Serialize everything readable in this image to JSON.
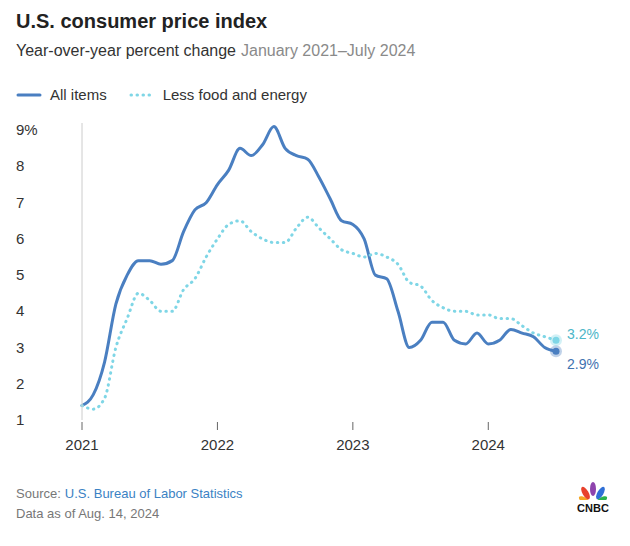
{
  "chart_data": {
    "type": "line",
    "title": "U.S. consumer price index",
    "subtitle": "Year-over-year percent change",
    "subtitle_note": "January 2021–July 2024",
    "source_label": "Source:",
    "source": "U.S. Bureau of Labor Statistics",
    "note": "Data as of Aug. 14, 2024",
    "logo": "CNBC",
    "categories": [
      "2021",
      null,
      null,
      null,
      null,
      null,
      null,
      null,
      null,
      null,
      null,
      null,
      "2022",
      null,
      null,
      null,
      null,
      null,
      null,
      null,
      null,
      null,
      null,
      null,
      "2023",
      null,
      null,
      null,
      null,
      null,
      null,
      null,
      null,
      null,
      null,
      null,
      "2024",
      null,
      null,
      null,
      null,
      null,
      null
    ],
    "series": [
      {
        "name": "All items",
        "color": "#4a7fc1",
        "line_style": "solid",
        "values": [
          1.4,
          1.7,
          2.6,
          4.2,
          5.0,
          5.4,
          5.4,
          5.3,
          5.4,
          6.2,
          6.8,
          7.0,
          7.5,
          7.9,
          8.5,
          8.3,
          8.6,
          9.1,
          8.5,
          8.3,
          8.2,
          7.7,
          7.1,
          6.5,
          6.4,
          6.0,
          5.0,
          4.9,
          4.0,
          3.0,
          3.2,
          3.7,
          3.7,
          3.2,
          3.1,
          3.4,
          3.1,
          3.2,
          3.5,
          3.4,
          3.3,
          3.0,
          2.9
        ],
        "value_labels": [
          null,
          null,
          null,
          null,
          null,
          null,
          null,
          null,
          null,
          null,
          null,
          null,
          null,
          null,
          null,
          null,
          null,
          null,
          null,
          null,
          null,
          null,
          null,
          null,
          null,
          null,
          null,
          null,
          null,
          null,
          null,
          null,
          null,
          null,
          null,
          null,
          null,
          null,
          null,
          null,
          null,
          null,
          "2.9%"
        ]
      },
      {
        "name": "Less food and energy",
        "color": "#7fd6e6",
        "line_style": "dotted",
        "values": [
          1.4,
          1.3,
          1.6,
          3.0,
          3.8,
          4.5,
          4.3,
          4.0,
          4.0,
          4.6,
          4.9,
          5.5,
          6.0,
          6.4,
          6.5,
          6.2,
          6.0,
          5.9,
          5.9,
          6.3,
          6.6,
          6.3,
          6.0,
          5.7,
          5.6,
          5.5,
          5.6,
          5.5,
          5.3,
          4.8,
          4.7,
          4.3,
          4.1,
          4.0,
          4.0,
          3.9,
          3.9,
          3.8,
          3.8,
          3.6,
          3.4,
          3.3,
          3.2
        ],
        "value_labels": [
          null,
          null,
          null,
          null,
          null,
          null,
          null,
          null,
          null,
          null,
          null,
          null,
          null,
          null,
          null,
          null,
          null,
          null,
          null,
          null,
          null,
          null,
          null,
          null,
          null,
          null,
          null,
          null,
          null,
          null,
          null,
          null,
          null,
          null,
          null,
          null,
          null,
          null,
          null,
          null,
          null,
          null,
          "3.2%"
        ]
      }
    ],
    "ylim": [
      1,
      9.2
    ],
    "yticks": [
      1,
      2,
      3,
      4,
      5,
      6,
      7,
      8,
      {
        "value": 9,
        "label": "9%"
      }
    ],
    "grid": false,
    "legend": "top-left"
  }
}
